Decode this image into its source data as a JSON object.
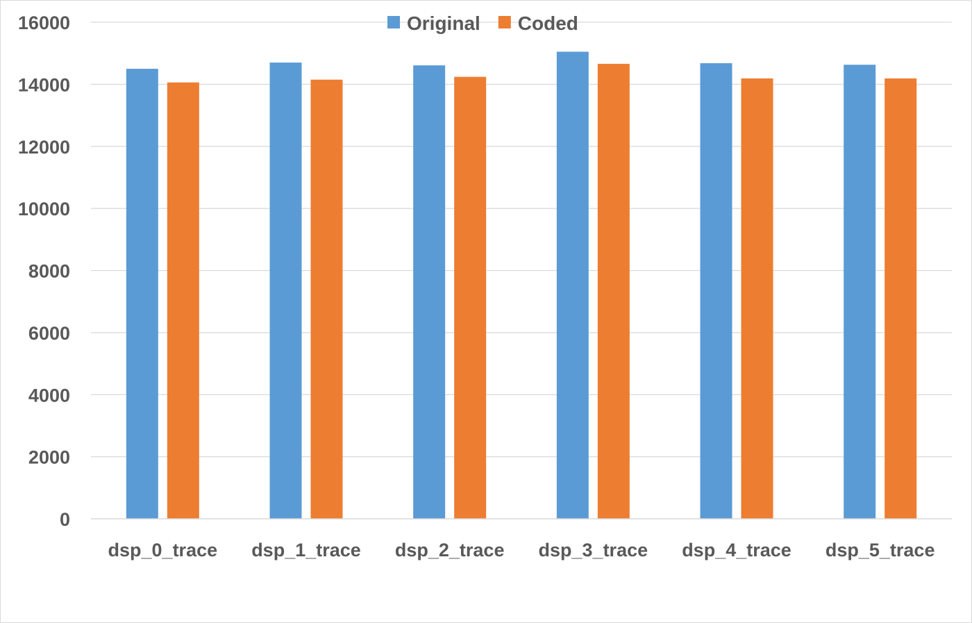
{
  "chart_data": {
    "type": "bar",
    "title": "",
    "xlabel": "",
    "ylabel": "",
    "categories": [
      "dsp_0_trace",
      "dsp_1_trace",
      "dsp_2_trace",
      "dsp_3_trace",
      "dsp_4_trace",
      "dsp_5_trace"
    ],
    "series": [
      {
        "name": "Original",
        "color": "#5B9BD5",
        "values": [
          14500,
          14700,
          14610,
          15050,
          14680,
          14630
        ]
      },
      {
        "name": "Coded",
        "color": "#ED7D31",
        "values": [
          14060,
          14150,
          14240,
          14660,
          14190,
          14190
        ]
      }
    ],
    "ylim": [
      0,
      16000
    ],
    "yticks": [
      0,
      2000,
      4000,
      6000,
      8000,
      10000,
      12000,
      14000,
      16000
    ],
    "grid": true,
    "legend": "top-center",
    "colors": {
      "grid": "#d9d9d9",
      "axis": "#d9d9d9",
      "text": "#595959"
    }
  }
}
